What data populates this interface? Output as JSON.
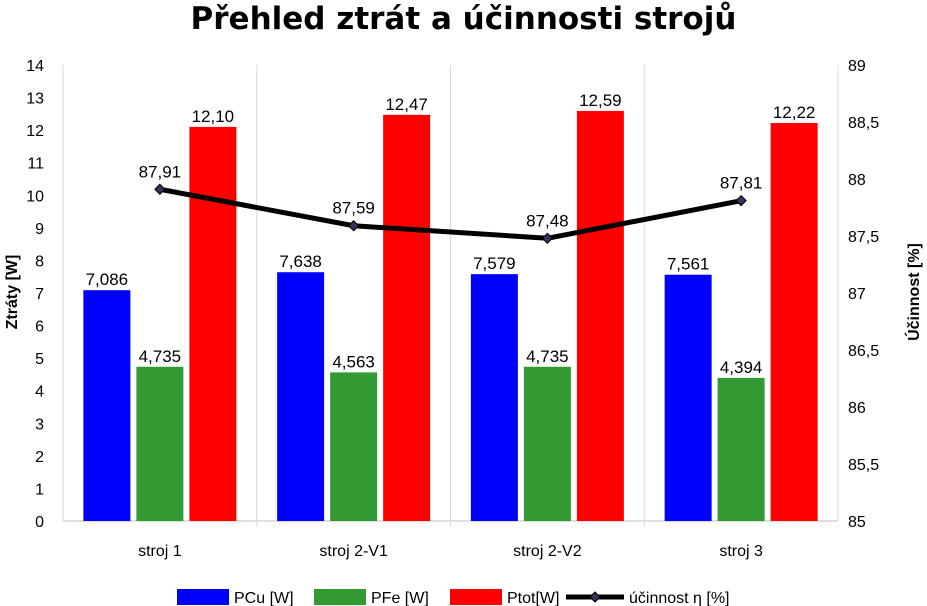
{
  "chart_data": {
    "type": "bar",
    "title": "Přehled ztrát a účinnosti strojů",
    "categories": [
      "stroj 1",
      "stroj 2-V1",
      "stroj 2-V2",
      "stroj 3"
    ],
    "series": [
      {
        "name": "PCu [W]",
        "axis": "left",
        "color": "#0000ff",
        "values": [
          7.086,
          7.638,
          7.579,
          7.561
        ],
        "labels": [
          "7,086",
          "7,638",
          "7,579",
          "7,561"
        ]
      },
      {
        "name": "PFe [W]",
        "axis": "left",
        "color": "#339933",
        "values": [
          4.735,
          4.563,
          4.735,
          4.394
        ],
        "labels": [
          "4,735",
          "4,563",
          "4,735",
          "4,394"
        ]
      },
      {
        "name": "Ptot[W]",
        "axis": "left",
        "color": "#ff0000",
        "values": [
          12.1,
          12.47,
          12.59,
          12.22
        ],
        "labels": [
          "12,10",
          "12,47",
          "12,59",
          "12,22"
        ]
      }
    ],
    "line_series": {
      "name": "účinnost η [%]",
      "axis": "right",
      "type": "line",
      "color": "#000000",
      "marker_color": "#3a2f5c",
      "values": [
        87.91,
        87.59,
        87.48,
        87.81
      ],
      "labels": [
        "87,91",
        "87,59",
        "87,48",
        "87,81"
      ]
    },
    "ylabel": "Ztráty [W]",
    "y2label": "Účinnost [%]",
    "ylim": [
      0,
      14
    ],
    "y2lim": [
      85,
      89
    ],
    "yticks": [
      "0",
      "1",
      "2",
      "3",
      "4",
      "5",
      "6",
      "7",
      "8",
      "9",
      "10",
      "11",
      "12",
      "13",
      "14"
    ],
    "y2ticks": [
      "85",
      "85,5",
      "86",
      "86,5",
      "87",
      "87,5",
      "88",
      "88,5",
      "89"
    ],
    "grid": "vertical category lines",
    "legend": "bottom"
  }
}
